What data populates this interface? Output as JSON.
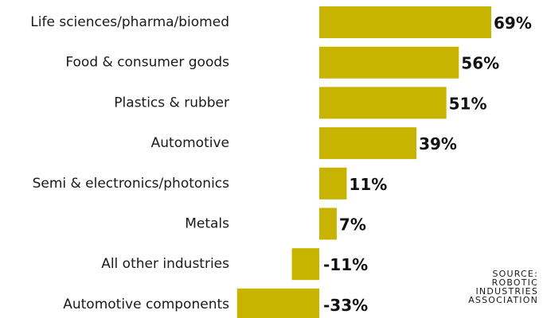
{
  "chart_data": {
    "type": "bar",
    "orientation": "horizontal",
    "categories": [
      "Life sciences/pharma/biomed",
      "Food & consumer goods",
      "Plastics & rubber",
      "Automotive",
      "Semi & electronics/photonics",
      "Metals",
      "All other industries",
      "Automotive components"
    ],
    "values": [
      69,
      56,
      51,
      39,
      11,
      7,
      -11,
      -33
    ],
    "value_labels": [
      "69%",
      "56%",
      "51%",
      "39%",
      "11%",
      "7%",
      "-11%",
      "-33%"
    ],
    "unit": "%",
    "xlim": [
      -33,
      69
    ],
    "bar_color": "#c8b400",
    "grid": false,
    "legend": false
  },
  "source": {
    "lines": [
      "SOURCE:",
      "ROBOTIC",
      "INDUSTRIES",
      "ASSOCIATION"
    ]
  }
}
